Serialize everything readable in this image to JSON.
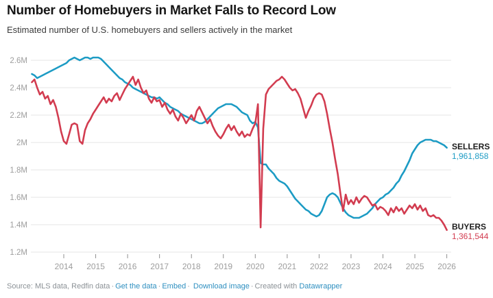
{
  "header": {
    "title": "Number of Homebuyers in Market Falls to Record Low",
    "subtitle": "Estimated number of U.S. homebuyers and sellers actively in the market"
  },
  "chart_data": {
    "type": "line",
    "title": "Number of Homebuyers in Market Falls to Record Low",
    "subtitle": "Estimated number of U.S. homebuyers and sellers actively in the market",
    "x_unit": "month",
    "x_start_year": 2013,
    "x_end_year": 2026,
    "ylim": [
      1.2,
      2.6
    ],
    "grid": true,
    "legend_position": "end-of-line",
    "y_ticks": [
      {
        "v": 2.6,
        "label": "2.6M"
      },
      {
        "v": 2.4,
        "label": "2.4M"
      },
      {
        "v": 2.2,
        "label": "2.2M"
      },
      {
        "v": 2.0,
        "label": "2M"
      },
      {
        "v": 1.8,
        "label": "1.8M"
      },
      {
        "v": 1.6,
        "label": "1.6M"
      },
      {
        "v": 1.4,
        "label": "1.4M"
      },
      {
        "v": 1.2,
        "label": "1.2M"
      }
    ],
    "x_ticks": [
      {
        "year": 2014,
        "label": "2014"
      },
      {
        "year": 2015,
        "label": "2015"
      },
      {
        "year": 2016,
        "label": "2016"
      },
      {
        "year": 2017,
        "label": "2017"
      },
      {
        "year": 2018,
        "label": "2018"
      },
      {
        "year": 2019,
        "label": "2019"
      },
      {
        "year": 2020,
        "label": "2020"
      },
      {
        "year": 2021,
        "label": "2021"
      },
      {
        "year": 2022,
        "label": "2022"
      },
      {
        "year": 2023,
        "label": "2023"
      },
      {
        "year": 2024,
        "label": "2024"
      },
      {
        "year": 2025,
        "label": "2025"
      },
      {
        "year": 2026,
        "label": "2026"
      }
    ],
    "series": [
      {
        "name": "SELLERS",
        "color": "#1c9bc4",
        "end_label": "SELLERS",
        "end_value": 1961858,
        "end_value_label": "1,961,858",
        "values_unit": "millions",
        "values": [
          2.5,
          2.49,
          2.47,
          2.48,
          2.49,
          2.5,
          2.51,
          2.52,
          2.53,
          2.54,
          2.55,
          2.56,
          2.57,
          2.58,
          2.6,
          2.61,
          2.62,
          2.61,
          2.6,
          2.61,
          2.62,
          2.62,
          2.61,
          2.62,
          2.62,
          2.62,
          2.61,
          2.59,
          2.57,
          2.55,
          2.53,
          2.51,
          2.49,
          2.47,
          2.46,
          2.44,
          2.43,
          2.42,
          2.4,
          2.39,
          2.38,
          2.37,
          2.36,
          2.35,
          2.34,
          2.33,
          2.33,
          2.32,
          2.33,
          2.31,
          2.29,
          2.28,
          2.26,
          2.25,
          2.24,
          2.23,
          2.21,
          2.2,
          2.19,
          2.18,
          2.17,
          2.16,
          2.15,
          2.14,
          2.14,
          2.15,
          2.17,
          2.19,
          2.21,
          2.23,
          2.25,
          2.26,
          2.27,
          2.28,
          2.28,
          2.28,
          2.27,
          2.26,
          2.24,
          2.22,
          2.21,
          2.2,
          2.16,
          2.14,
          2.15,
          2.11,
          1.85,
          1.84,
          1.84,
          1.81,
          1.79,
          1.77,
          1.74,
          1.72,
          1.71,
          1.7,
          1.68,
          1.65,
          1.62,
          1.59,
          1.57,
          1.55,
          1.53,
          1.51,
          1.5,
          1.48,
          1.47,
          1.46,
          1.47,
          1.5,
          1.55,
          1.6,
          1.62,
          1.63,
          1.62,
          1.6,
          1.56,
          1.52,
          1.49,
          1.47,
          1.46,
          1.45,
          1.45,
          1.45,
          1.46,
          1.47,
          1.48,
          1.5,
          1.52,
          1.55,
          1.57,
          1.59,
          1.6,
          1.62,
          1.63,
          1.65,
          1.67,
          1.7,
          1.72,
          1.76,
          1.79,
          1.83,
          1.87,
          1.92,
          1.95,
          1.98,
          2.0,
          2.01,
          2.02,
          2.02,
          2.02,
          2.01,
          2.01,
          2.0,
          1.99,
          1.98,
          1.961858
        ]
      },
      {
        "name": "BUYERS",
        "color": "#d23c50",
        "end_label": "BUYERS",
        "end_value": 1361544,
        "end_value_label": "1,361,544",
        "values_unit": "millions",
        "values": [
          2.44,
          2.46,
          2.4,
          2.35,
          2.37,
          2.32,
          2.34,
          2.28,
          2.31,
          2.26,
          2.18,
          2.08,
          2.01,
          1.99,
          2.06,
          2.13,
          2.14,
          2.13,
          2.01,
          1.99,
          2.09,
          2.14,
          2.17,
          2.21,
          2.24,
          2.27,
          2.3,
          2.33,
          2.29,
          2.32,
          2.3,
          2.34,
          2.36,
          2.31,
          2.35,
          2.39,
          2.42,
          2.45,
          2.48,
          2.42,
          2.46,
          2.4,
          2.36,
          2.38,
          2.32,
          2.29,
          2.33,
          2.3,
          2.31,
          2.26,
          2.29,
          2.24,
          2.21,
          2.24,
          2.19,
          2.16,
          2.21,
          2.18,
          2.14,
          2.17,
          2.2,
          2.16,
          2.23,
          2.26,
          2.22,
          2.18,
          2.14,
          2.17,
          2.12,
          2.08,
          2.05,
          2.03,
          2.06,
          2.1,
          2.13,
          2.09,
          2.12,
          2.08,
          2.05,
          2.08,
          2.04,
          2.06,
          2.05,
          2.1,
          2.14,
          2.28,
          1.38,
          2.1,
          2.35,
          2.39,
          2.41,
          2.43,
          2.45,
          2.46,
          2.48,
          2.46,
          2.43,
          2.4,
          2.38,
          2.39,
          2.36,
          2.32,
          2.25,
          2.18,
          2.23,
          2.27,
          2.32,
          2.35,
          2.36,
          2.35,
          2.3,
          2.21,
          2.1,
          2.0,
          1.88,
          1.77,
          1.63,
          1.5,
          1.62,
          1.55,
          1.58,
          1.55,
          1.6,
          1.56,
          1.59,
          1.61,
          1.6,
          1.57,
          1.54,
          1.55,
          1.51,
          1.53,
          1.52,
          1.5,
          1.47,
          1.52,
          1.49,
          1.53,
          1.5,
          1.52,
          1.48,
          1.51,
          1.54,
          1.52,
          1.55,
          1.51,
          1.54,
          1.5,
          1.52,
          1.47,
          1.46,
          1.47,
          1.45,
          1.45,
          1.43,
          1.4,
          1.361544
        ]
      }
    ]
  },
  "footer": {
    "source_prefix": "Source: MLS data, Redfin data",
    "separator": "·",
    "link_get_data": "Get the data",
    "link_embed": "Embed",
    "link_download": "Download image",
    "created_with": "Created with",
    "link_datawrapper": "Datawrapper"
  },
  "colors": {
    "sellers": "#1c9bc4",
    "buyers": "#d23c50",
    "grid": "#e4e4e4",
    "axis_text": "#9d9d9d",
    "footer_text": "#8b9196",
    "footer_link": "#2e8fc0"
  }
}
